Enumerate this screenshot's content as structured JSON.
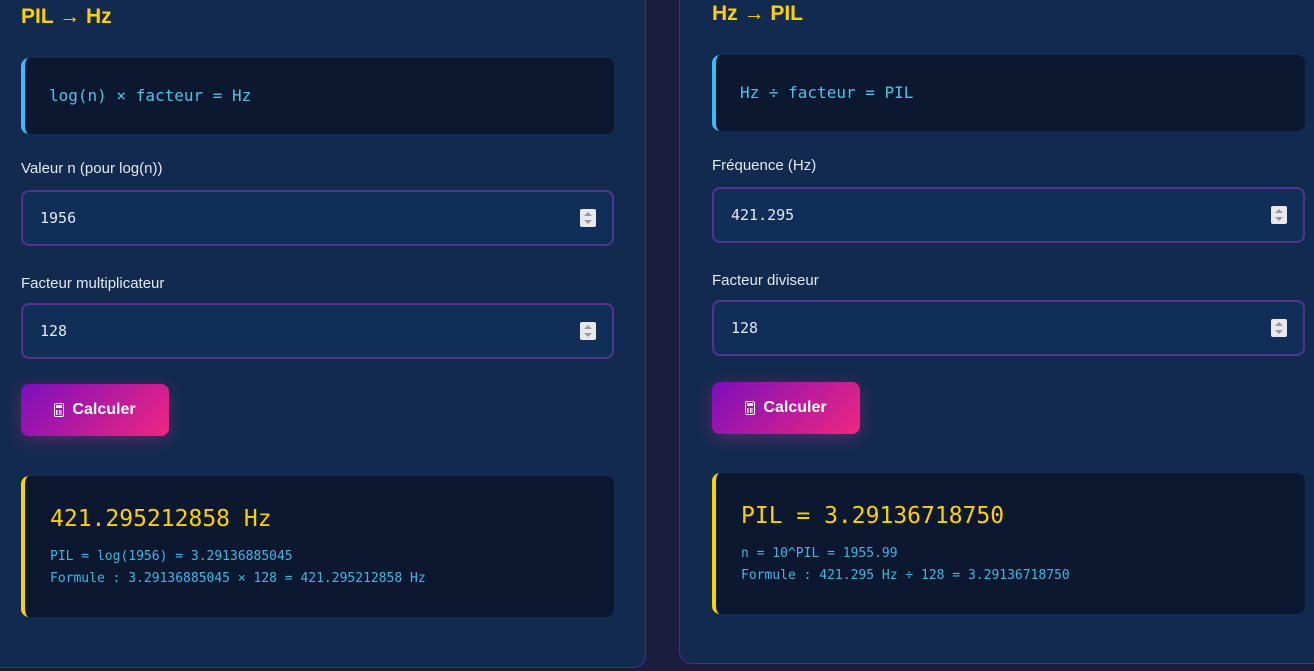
{
  "pil_to_hz": {
    "title": "PIL → Hz",
    "formula": "log(n) × facteur = Hz",
    "n_label": "Valeur n (pour log(n))",
    "n_value": "1956",
    "factor_label": "Facteur multiplicateur",
    "factor_value": "128",
    "button_label": "Calculer",
    "result_main": "421.295212858 Hz",
    "result_line1": "PIL = log(1956) = 3.29136885045",
    "result_line2": "Formule : 3.29136885045 × 128 = 421.295212858 Hz"
  },
  "hz_to_pil": {
    "title": "Hz → PIL",
    "formula": "Hz ÷ facteur = PIL",
    "freq_label": "Fréquence (Hz)",
    "freq_value": "421.295",
    "factor_label": "Facteur diviseur",
    "factor_value": "128",
    "button_label": "Calculer",
    "result_main": "PIL = 3.29136718750",
    "result_line1": "n = 10^PIL = 1955.99",
    "result_line2": "Formule : 421.295 Hz ÷ 128 = 3.29136718750"
  },
  "icons": {
    "button": "calculator-icon",
    "spinner": "number-spinner-icon"
  },
  "colors": {
    "accent": "#ffd100",
    "formula_border": "#38bdf8",
    "button_start": "#7b0fbd",
    "button_end": "#f0267f"
  }
}
